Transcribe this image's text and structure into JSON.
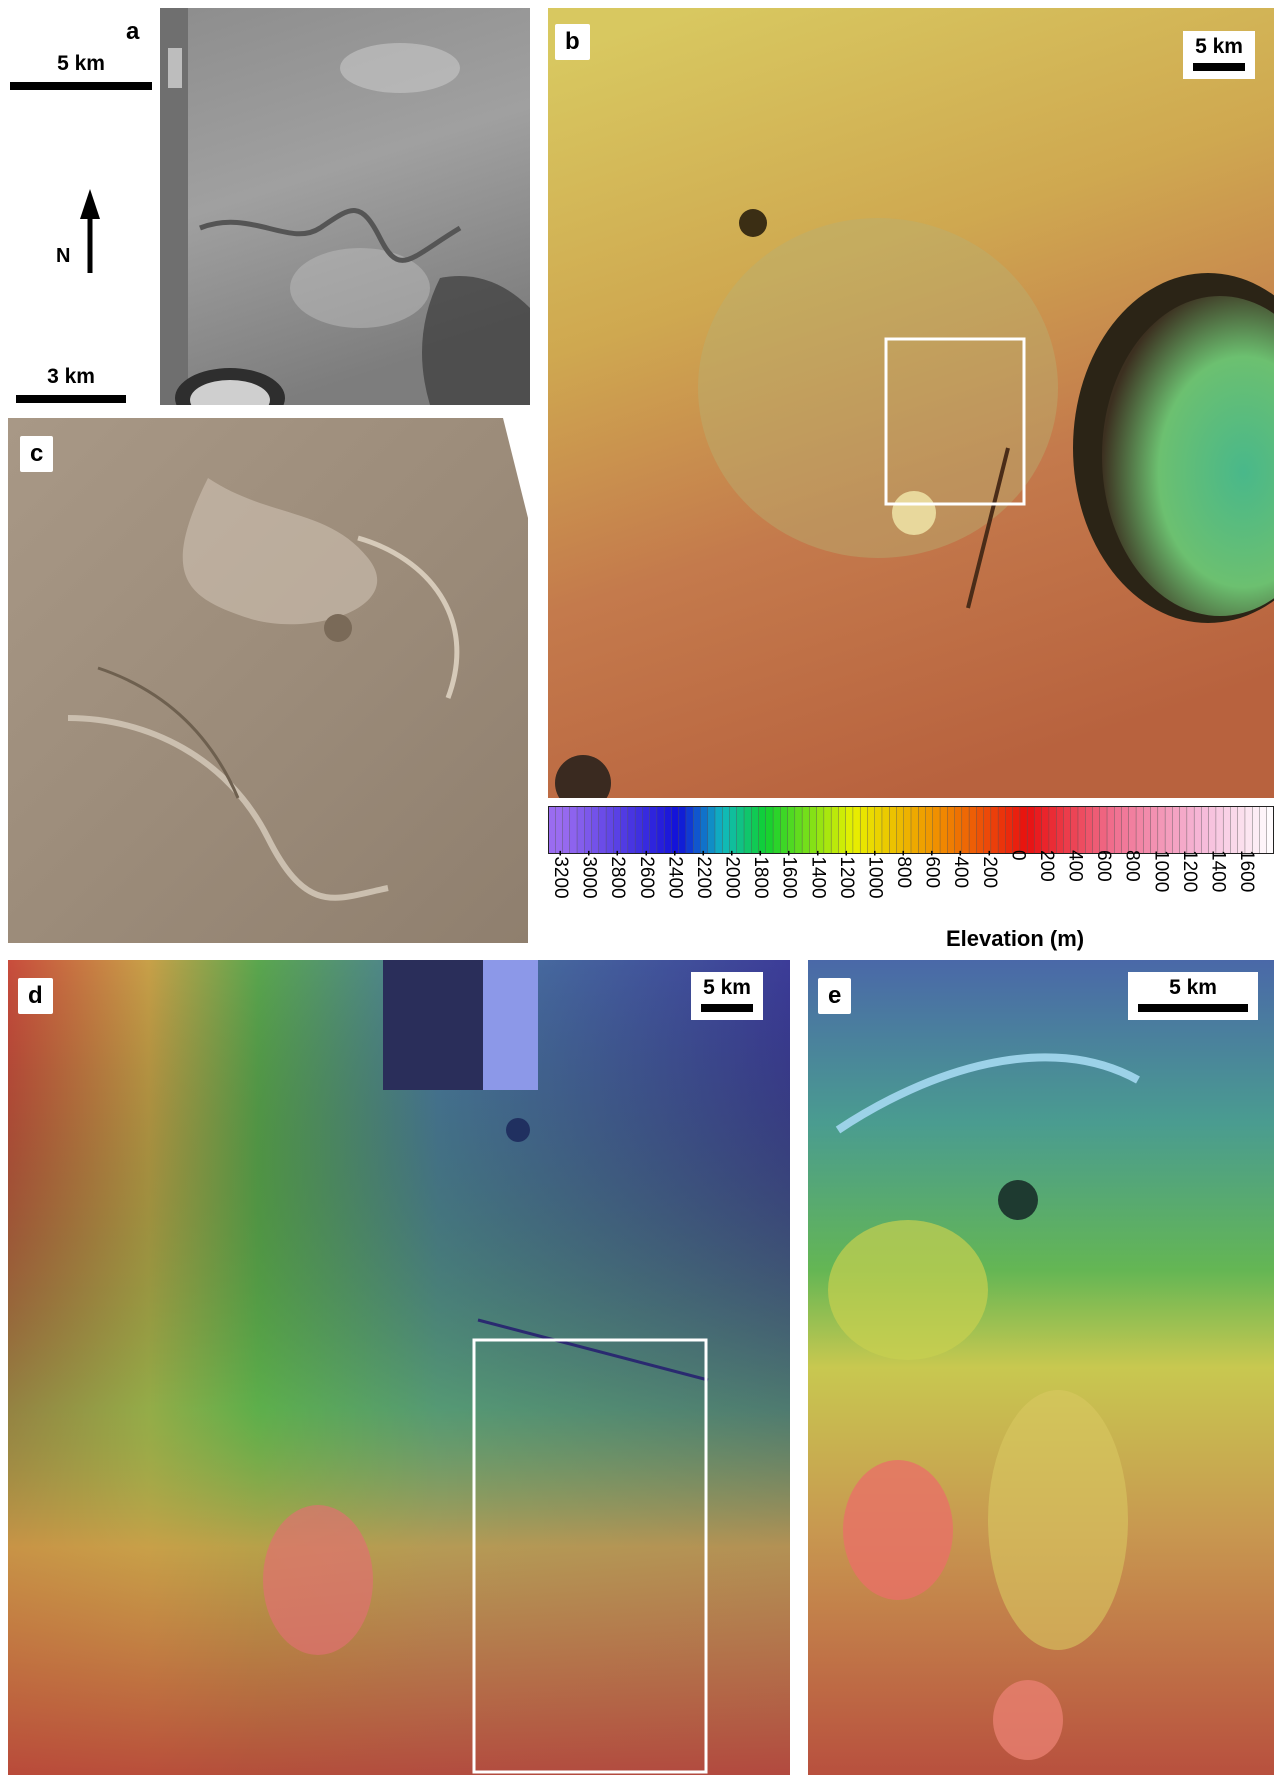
{
  "panels": {
    "a": {
      "letter": "a",
      "scale_top": "5 km",
      "scale_bottom": "3 km",
      "north": "N"
    },
    "b": {
      "letter": "b",
      "scale": "5 km"
    },
    "c": {
      "letter": "c"
    },
    "d": {
      "letter": "d",
      "scale": "5 km"
    },
    "e": {
      "letter": "e",
      "scale": "5 km"
    }
  },
  "colorbar": {
    "title": "Elevation (m)",
    "ticks": [
      "-3200",
      "-3000",
      "-2800",
      "-2600",
      "-2400",
      "-2200",
      "-2000",
      "-1800",
      "-1600",
      "-1400",
      "-1200",
      "-1000",
      "-800",
      "-600",
      "-400",
      "-200",
      "0",
      "200",
      "400",
      "600",
      "800",
      "1000",
      "1200",
      "1400",
      "1600"
    ],
    "stops": [
      {
        "value": -3200,
        "color": "#9a6cf0"
      },
      {
        "value": -2400,
        "color": "#1010d8"
      },
      {
        "value": -2100,
        "color": "#10b8c0"
      },
      {
        "value": -1800,
        "color": "#10d030"
      },
      {
        "value": -1200,
        "color": "#e8f000"
      },
      {
        "value": -600,
        "color": "#f08c00"
      },
      {
        "value": 0,
        "color": "#e81010"
      },
      {
        "value": 600,
        "color": "#f07090"
      },
      {
        "value": 1200,
        "color": "#f6b8d8"
      },
      {
        "value": 1700,
        "color": "#ffffff"
      }
    ]
  }
}
